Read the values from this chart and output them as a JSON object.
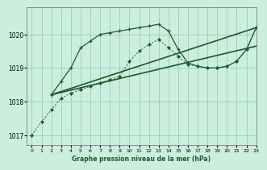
{
  "title": "Graphe pression niveau de la mer (hPa)",
  "bg_color": "#cceedd",
  "plot_bg_color": "#cceedd",
  "grid_color": "#99ccbb",
  "line_color": "#1a5c2a",
  "xlim": [
    -0.5,
    23
  ],
  "ylim": [
    1016.7,
    1020.8
  ],
  "yticks": [
    1017,
    1018,
    1019,
    1020
  ],
  "xticks": [
    0,
    1,
    2,
    3,
    4,
    5,
    6,
    7,
    8,
    9,
    10,
    11,
    12,
    13,
    14,
    15,
    16,
    17,
    18,
    19,
    20,
    21,
    22,
    23
  ],
  "series_dotted_x": [
    0,
    1,
    2,
    3,
    4,
    5,
    6,
    7,
    8,
    9,
    10,
    11,
    12,
    13,
    14,
    15,
    16,
    17,
    18,
    19,
    20,
    21,
    22,
    23
  ],
  "series_dotted_y": [
    1017.0,
    1017.4,
    1017.75,
    1018.1,
    1018.25,
    1018.35,
    1018.45,
    1018.55,
    1018.65,
    1018.75,
    1019.2,
    1019.5,
    1019.7,
    1019.85,
    1019.6,
    1019.35,
    1019.1,
    1019.05,
    1019.0,
    1019.0,
    1019.05,
    1019.2,
    1019.55,
    1020.2
  ],
  "series_plus_x": [
    2,
    3,
    4,
    5,
    6,
    7,
    8,
    9,
    10,
    11,
    12,
    13,
    14,
    15,
    16,
    17,
    18,
    19,
    20,
    21,
    22,
    23
  ],
  "series_plus_y": [
    1018.2,
    1018.6,
    1019.0,
    1019.6,
    1019.8,
    1020.0,
    1020.05,
    1020.1,
    1020.15,
    1020.2,
    1020.25,
    1020.3,
    1020.1,
    1019.55,
    1019.15,
    1019.05,
    1019.0,
    1019.0,
    1019.05,
    1019.2,
    1019.55,
    1020.2
  ],
  "series_line1_x": [
    2,
    23
  ],
  "series_line1_y": [
    1018.2,
    1020.2
  ],
  "series_line2_x": [
    2,
    23
  ],
  "series_line2_y": [
    1018.2,
    1019.65
  ]
}
